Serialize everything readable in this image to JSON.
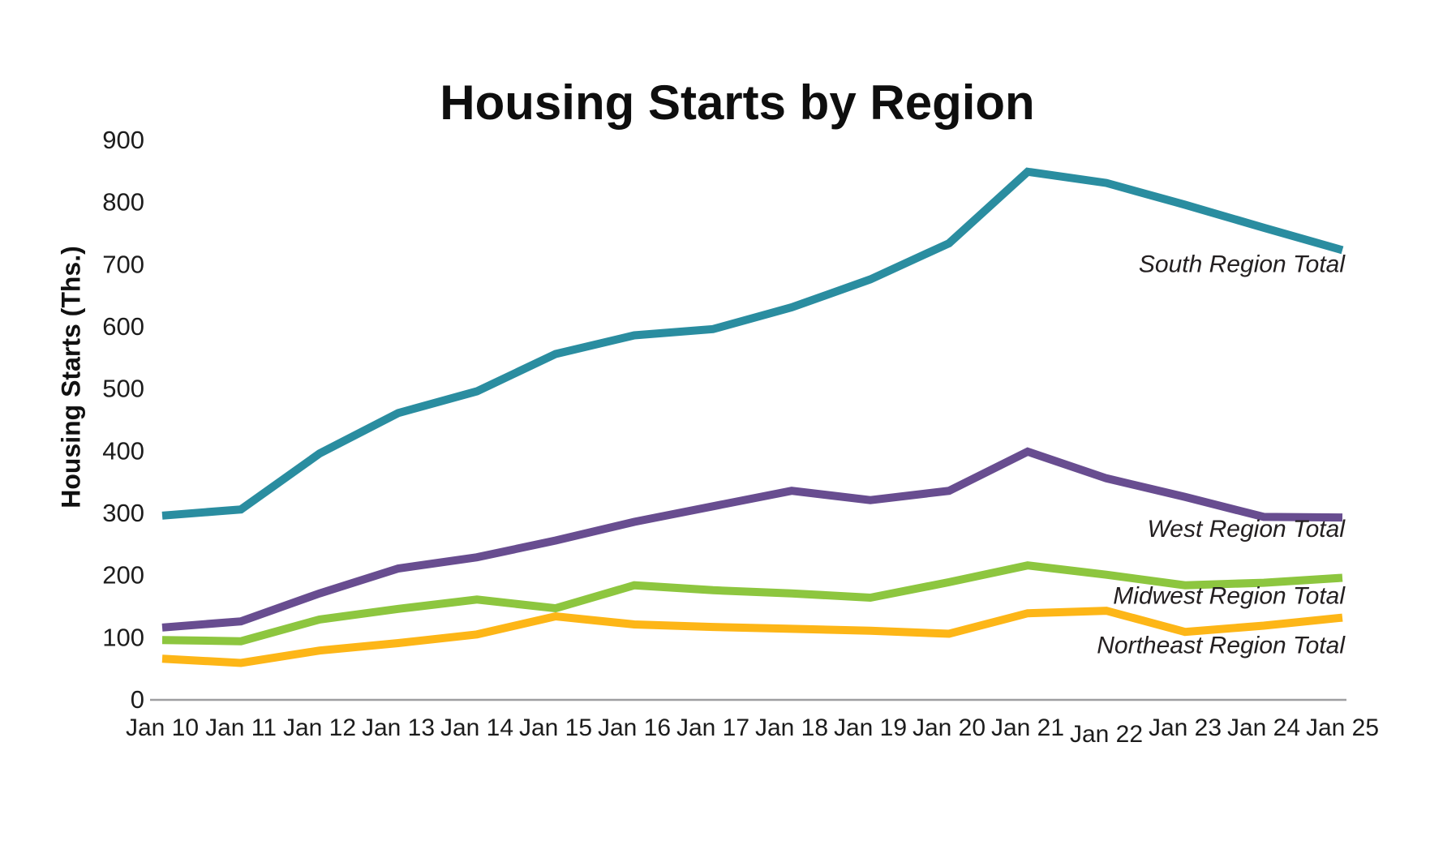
{
  "page": {
    "background": "#ffffff"
  },
  "chart_data": {
    "type": "line",
    "title": "Housing Starts by Region",
    "ylabel": "Housing Starts (Ths.)",
    "xlabel": "",
    "categories": [
      "Jan 10",
      "Jan 11",
      "Jan 12",
      "Jan 13",
      "Jan 14",
      "Jan 15",
      "Jan 16",
      "Jan 17",
      "Jan 18",
      "Jan 19",
      "Jan 20",
      "Jan 21",
      "Jan 22",
      "Jan 23",
      "Jan 24",
      "Jan 25"
    ],
    "yticks": [
      0,
      100,
      200,
      300,
      400,
      500,
      600,
      700,
      800,
      900
    ],
    "ylim": [
      0,
      900
    ],
    "grid": false,
    "legend_style": "direct-labels-right",
    "axis_color": "#9e9ea0",
    "text_color": "#1c1c1c",
    "series": [
      {
        "name": "South Region Total",
        "color": "#2a8da0",
        "values": [
          295,
          305,
          395,
          460,
          495,
          555,
          585,
          595,
          630,
          675,
          733,
          848,
          830,
          795,
          758,
          722
        ]
      },
      {
        "name": "West Region Total",
        "color": "#684d90",
        "values": [
          115,
          125,
          170,
          210,
          228,
          255,
          285,
          310,
          335,
          320,
          335,
          398,
          355,
          325,
          293,
          292
        ]
      },
      {
        "name": "Midwest Region Total",
        "color": "#8dc63f",
        "values": [
          95,
          93,
          128,
          145,
          160,
          146,
          183,
          175,
          170,
          163,
          188,
          215,
          200,
          183,
          187,
          195
        ]
      },
      {
        "name": "Northeast Region Total",
        "color": "#fdb617",
        "values": [
          65,
          58,
          78,
          90,
          104,
          133,
          120,
          116,
          113,
          110,
          105,
          138,
          142,
          108,
          118,
          131
        ]
      }
    ]
  }
}
